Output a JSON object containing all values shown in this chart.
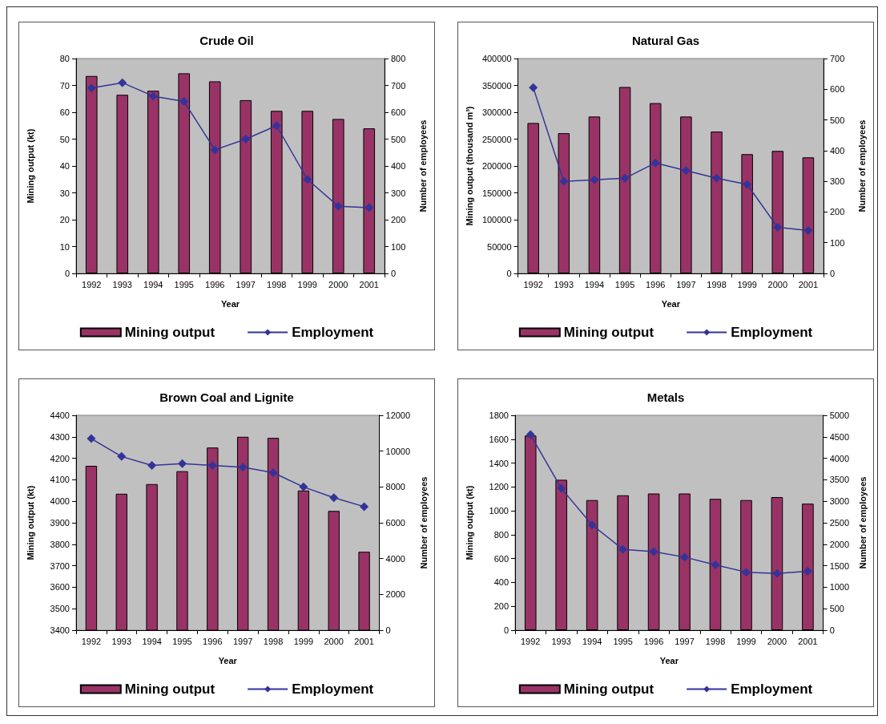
{
  "chart_data": [
    {
      "type": "bar",
      "title": "Crude Oil",
      "xlabel": "Year",
      "ylabel": "Mining output (kt)",
      "y2label": "Number of employees",
      "categories": [
        "1992",
        "1993",
        "1994",
        "1995",
        "1996",
        "1997",
        "1998",
        "1999",
        "2000",
        "2001"
      ],
      "series": [
        {
          "name": "Mining output",
          "color": "#993366",
          "values": [
            73.5,
            66.5,
            68,
            74.5,
            71.5,
            64.5,
            60.5,
            60.5,
            57.5,
            54
          ]
        },
        {
          "name": "Employment",
          "type": "line",
          "axis": "y2",
          "color": "#333399",
          "values": [
            690,
            710,
            660,
            640,
            460,
            500,
            550,
            350,
            250,
            245
          ]
        }
      ],
      "ylim": [
        0,
        80
      ],
      "yticks": [
        0,
        10,
        20,
        30,
        40,
        50,
        60,
        70,
        80
      ],
      "y2lim": [
        0,
        800
      ],
      "y2ticks": [
        0,
        100,
        200,
        300,
        400,
        500,
        600,
        700,
        800
      ],
      "grid": false,
      "legend": "bottom",
      "marker": "diamond"
    },
    {
      "type": "bar",
      "title": "Natural Gas",
      "xlabel": "Year",
      "ylabel": "Mining output (thousand m³)",
      "y2label": "Number of employees",
      "categories": [
        "1992",
        "1993",
        "1994",
        "1995",
        "1996",
        "1997",
        "1998",
        "1999",
        "2000",
        "2001"
      ],
      "series": [
        {
          "name": "Mining output",
          "color": "#993366",
          "values": [
            280000,
            261000,
            292000,
            347000,
            317000,
            292000,
            264000,
            222000,
            228000,
            216000
          ]
        },
        {
          "name": "Employment",
          "type": "line",
          "axis": "y2",
          "color": "#333399",
          "values": [
            605,
            300,
            305,
            310,
            360,
            335,
            310,
            290,
            150,
            140
          ]
        }
      ],
      "ylim": [
        0,
        400000
      ],
      "yticks": [
        0,
        50000,
        100000,
        150000,
        200000,
        250000,
        300000,
        350000,
        400000
      ],
      "y2lim": [
        0,
        700
      ],
      "y2ticks": [
        0,
        100,
        200,
        300,
        400,
        500,
        600,
        700
      ],
      "grid": false,
      "legend": "bottom",
      "marker": "diamond"
    },
    {
      "type": "bar",
      "title": "Brown Coal and Lignite",
      "xlabel": "Year",
      "ylabel": "Mining output (kt)",
      "y2label": "Number of employees",
      "categories": [
        "1992",
        "1993",
        "1994",
        "1995",
        "1996",
        "1997",
        "1998",
        "1999",
        "2000",
        "2001"
      ],
      "series": [
        {
          "name": "Mining output",
          "color": "#993366",
          "values": [
            4165,
            4035,
            4080,
            4140,
            4250,
            4300,
            4295,
            4050,
            3955,
            3765
          ]
        },
        {
          "name": "Employment",
          "type": "line",
          "axis": "y2",
          "color": "#333399",
          "values": [
            10700,
            9700,
            9200,
            9300,
            9200,
            9100,
            8800,
            8000,
            7400,
            6900
          ]
        }
      ],
      "ylim": [
        3400,
        4400
      ],
      "yticks": [
        3400,
        3500,
        3600,
        3700,
        3800,
        3900,
        4000,
        4100,
        4200,
        4300,
        4400
      ],
      "y2lim": [
        0,
        12000
      ],
      "y2ticks": [
        0,
        2000,
        4000,
        6000,
        8000,
        10000,
        12000
      ],
      "grid": false,
      "legend": "bottom",
      "marker": "diamond"
    },
    {
      "type": "bar",
      "title": "Metals",
      "xlabel": "Year",
      "ylabel": "Mining output (kt)",
      "y2label": "Number of employees",
      "categories": [
        "1992",
        "1993",
        "1994",
        "1995",
        "1996",
        "1997",
        "1998",
        "1999",
        "2000",
        "2001"
      ],
      "series": [
        {
          "name": "Mining output",
          "color": "#993366",
          "values": [
            1630,
            1260,
            1090,
            1130,
            1145,
            1145,
            1100,
            1090,
            1115,
            1060
          ]
        },
        {
          "name": "Employment",
          "type": "line",
          "axis": "y2",
          "color": "#333399",
          "values": [
            4550,
            3300,
            2450,
            1880,
            1830,
            1700,
            1520,
            1350,
            1320,
            1370
          ]
        }
      ],
      "ylim": [
        0,
        1800
      ],
      "yticks": [
        0,
        200,
        400,
        600,
        800,
        1000,
        1200,
        1400,
        1600,
        1800
      ],
      "y2lim": [
        0,
        5000
      ],
      "y2ticks": [
        0,
        500,
        1000,
        1500,
        2000,
        2500,
        3000,
        3500,
        4000,
        4500,
        5000
      ],
      "grid": false,
      "legend": "bottom",
      "marker": "diamond"
    }
  ]
}
